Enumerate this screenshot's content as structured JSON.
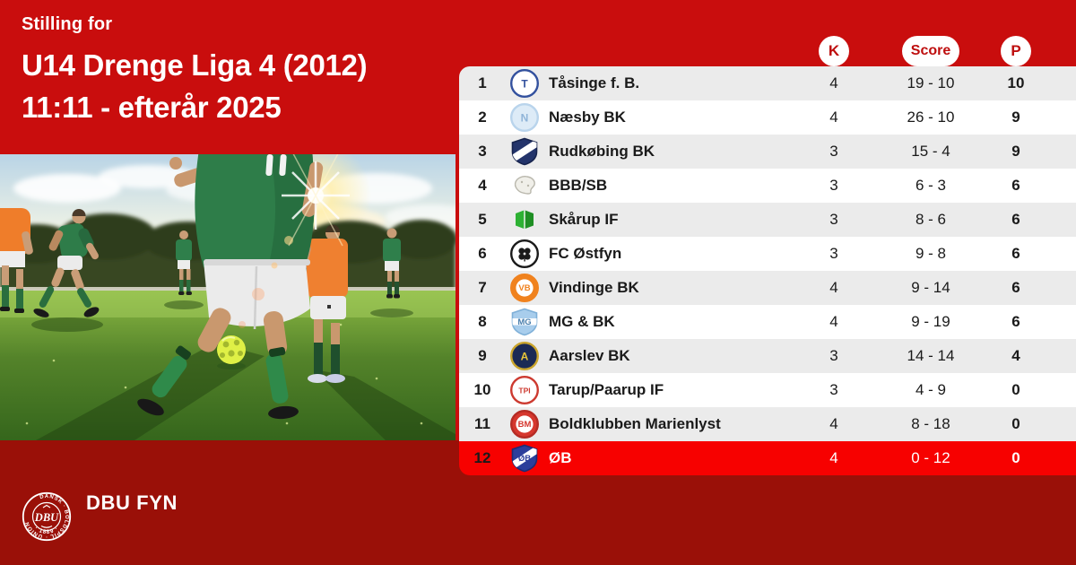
{
  "header": {
    "kicker": "Stilling for",
    "title_line1": "U14 Drenge Liga 4 (2012)",
    "title_line2": "11:11 - efterår 2025"
  },
  "table": {
    "columns": [
      {
        "key": "k",
        "label": "K"
      },
      {
        "key": "score",
        "label": "Score"
      },
      {
        "key": "p",
        "label": "P"
      }
    ],
    "rows": [
      {
        "pos": "1",
        "team": "Tåsinge f. B.",
        "k": "4",
        "score": "19 - 10",
        "p": "10",
        "highlight": false,
        "logo": {
          "name": "taasinge-fb-logo",
          "kind": "circle",
          "bg": "#ffffff",
          "ring": "#33519e",
          "text": "T",
          "text_color": "#33519e"
        }
      },
      {
        "pos": "2",
        "team": "Næsby BK",
        "k": "4",
        "score": "26 - 10",
        "p": "9",
        "highlight": false,
        "logo": {
          "name": "naesby-bk-logo",
          "kind": "circle",
          "bg": "#ddebf7",
          "ring": "#b9d4ec",
          "text": "N",
          "text_color": "#8fb4d8"
        }
      },
      {
        "pos": "3",
        "team": "Rudkøbing BK",
        "k": "3",
        "score": "15 - 4",
        "p": "9",
        "highlight": false,
        "logo": {
          "name": "rudkoebing-bk-logo",
          "kind": "shield",
          "bg": "#23346b",
          "ring": "#16234d",
          "band": "d",
          "band_color": "#ffffff"
        }
      },
      {
        "pos": "4",
        "team": "BBB/SB",
        "k": "3",
        "score": "6 - 3",
        "p": "6",
        "highlight": false,
        "logo": {
          "name": "bbb-sb-logo",
          "kind": "blob",
          "bg": "#f0efe9",
          "ring": "#b9b7ac"
        }
      },
      {
        "pos": "5",
        "team": "Skårup IF",
        "k": "3",
        "score": "8 - 6",
        "p": "6",
        "highlight": false,
        "logo": {
          "name": "skaarup-if-logo",
          "kind": "book",
          "bg": "#2db133",
          "ring": "#1f8f24"
        }
      },
      {
        "pos": "6",
        "team": "FC Østfyn",
        "k": "3",
        "score": "9 - 8",
        "p": "6",
        "highlight": false,
        "logo": {
          "name": "fc-oestfyn-logo",
          "kind": "clover",
          "bg": "#ffffff",
          "ring": "#1a1a1a",
          "text_color": "#1a1a1a"
        }
      },
      {
        "pos": "7",
        "team": "Vindinge BK",
        "k": "4",
        "score": "9 - 14",
        "p": "6",
        "highlight": false,
        "logo": {
          "name": "vindinge-bk-logo",
          "kind": "circle",
          "bg": "#f0821e",
          "ring": "#f0821e",
          "inner": "#ffffff",
          "text": "VB",
          "text_color": "#f0821e"
        }
      },
      {
        "pos": "8",
        "team": "MG & BK",
        "k": "4",
        "score": "9 - 19",
        "p": "6",
        "highlight": false,
        "logo": {
          "name": "mg-bk-logo",
          "kind": "shield",
          "bg": "#a8cdec",
          "ring": "#7fb0d8",
          "band": "h",
          "band_color": "#ffffff",
          "text": "MG",
          "text_color": "#4a7fae"
        }
      },
      {
        "pos": "9",
        "team": "Aarslev BK",
        "k": "3",
        "score": "14 - 14",
        "p": "4",
        "highlight": false,
        "logo": {
          "name": "aarslev-bk-logo",
          "kind": "circle",
          "bg": "#1b2a55",
          "ring": "#caa52d",
          "text": "A",
          "text_color": "#e9c63a"
        }
      },
      {
        "pos": "10",
        "team": "Tarup/Paarup IF",
        "k": "3",
        "score": "4 - 9",
        "p": "0",
        "highlight": false,
        "logo": {
          "name": "tarup-paarup-if-logo",
          "kind": "circle",
          "bg": "#ffffff",
          "ring": "#cd3a30",
          "text": "TPI",
          "text_color": "#cd3a30"
        }
      },
      {
        "pos": "11",
        "team": "Boldklubben Marienlyst",
        "k": "4",
        "score": "8 - 18",
        "p": "0",
        "highlight": false,
        "logo": {
          "name": "boldklubben-marienlyst-logo",
          "kind": "circle",
          "bg": "#d6372e",
          "ring": "#b52b24",
          "inner": "#ffffff",
          "text": "BM",
          "text_color": "#d6372e"
        }
      },
      {
        "pos": "12",
        "team": "ØB",
        "k": "4",
        "score": "0 - 12",
        "p": "0",
        "highlight": true,
        "logo": {
          "name": "oeb-logo",
          "kind": "shield",
          "bg": "#2c3f9b",
          "ring": "#1d2c74",
          "band": "d",
          "band_color": "#ffffff",
          "text": "ØB",
          "text_color": "#2c3f9b"
        }
      }
    ]
  },
  "footer": {
    "brand": "DBU FYN",
    "seal_top_text": "DANSK · BOLDSPIL · UNION",
    "seal_center": "DBU",
    "seal_year": "· 1889 ·"
  },
  "colors": {
    "background_red": "#C90D0D",
    "footer_maroon": "#9A1008",
    "highlight_row_red": "#F70100",
    "pill_text_red": "#BE0E0E",
    "row_alt_gray": "#EBEBEB",
    "table_text": "#1A1A1A"
  }
}
